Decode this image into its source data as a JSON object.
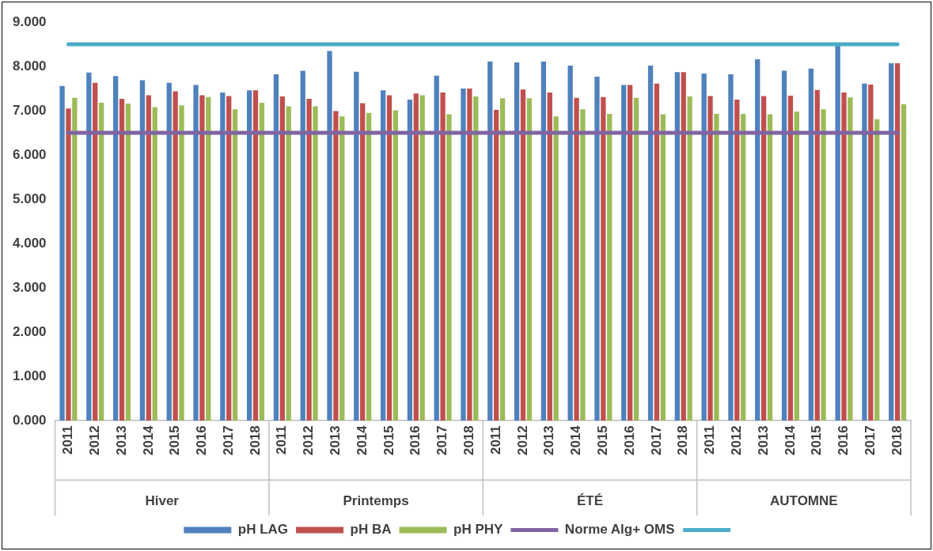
{
  "chart_data": {
    "type": "bar",
    "categories": [
      "2011",
      "2012",
      "2013",
      "2014",
      "2015",
      "2016",
      "2017",
      "2018",
      "2011",
      "2012",
      "2013",
      "2014",
      "2015",
      "2016",
      "2017",
      "2018",
      "2011",
      "2012",
      "2013",
      "2014",
      "2015",
      "2016",
      "2017",
      "2018",
      "2011",
      "2012",
      "2013",
      "2014",
      "2015",
      "2016",
      "2017",
      "2018"
    ],
    "annotations": [
      "Hiver",
      "Printemps",
      "ÉTÉ",
      "AUTOMNE"
    ],
    "series": [
      {
        "name": "pH LAG",
        "color": "#4f81bd",
        "values": [
          7.56,
          7.86,
          7.78,
          7.69,
          7.63,
          7.58,
          7.41,
          7.46,
          7.82,
          7.9,
          8.35,
          7.88,
          7.46,
          7.25,
          7.79,
          7.5,
          8.11,
          8.09,
          8.11,
          8.02,
          7.77,
          7.58,
          8.02,
          7.87,
          7.84,
          7.82,
          8.16,
          7.9,
          7.95,
          8.47,
          7.61,
          8.07
        ]
      },
      {
        "name": "pH BA",
        "color": "#c0504d",
        "values": [
          7.05,
          7.63,
          7.27,
          7.35,
          7.44,
          7.35,
          7.33,
          7.46,
          7.32,
          7.27,
          6.99,
          7.17,
          7.35,
          7.39,
          7.41,
          7.5,
          7.02,
          7.48,
          7.41,
          7.29,
          7.31,
          7.58,
          7.61,
          7.87,
          7.33,
          7.25,
          7.33,
          7.34,
          7.47,
          7.41,
          7.59,
          8.07
        ]
      },
      {
        "name": "pH PHY",
        "color": "#9bbb59",
        "values": [
          7.29,
          7.18,
          7.16,
          7.08,
          7.12,
          7.31,
          7.03,
          7.18,
          7.1,
          7.1,
          6.87,
          6.95,
          7.01,
          7.35,
          6.92,
          7.32,
          7.28,
          7.28,
          6.87,
          7.03,
          6.93,
          7.29,
          6.92,
          7.32,
          6.93,
          6.93,
          6.92,
          6.98,
          7.03,
          7.3,
          6.81,
          7.15
        ]
      },
      {
        "name": "Norme Alg+ OMS",
        "type": "line",
        "color": "#8064a2",
        "values": [
          6.5,
          6.5,
          6.5,
          6.5,
          6.5,
          6.5,
          6.5,
          6.5,
          6.5,
          6.5,
          6.5,
          6.5,
          6.5,
          6.5,
          6.5,
          6.5,
          6.5,
          6.5,
          6.5,
          6.5,
          6.5,
          6.5,
          6.5,
          6.5,
          6.5,
          6.5,
          6.5,
          6.5,
          6.5,
          6.5,
          6.5,
          6.5
        ]
      },
      {
        "type": "line",
        "color": "#4bacc6",
        "values": [
          8.5,
          8.5,
          8.5,
          8.5,
          8.5,
          8.5,
          8.5,
          8.5,
          8.5,
          8.5,
          8.5,
          8.5,
          8.5,
          8.5,
          8.5,
          8.5,
          8.5,
          8.5,
          8.5,
          8.5,
          8.5,
          8.5,
          8.5,
          8.5,
          8.5,
          8.5,
          8.5,
          8.5,
          8.5,
          8.5,
          8.5,
          8.5
        ]
      }
    ],
    "ylim": [
      0,
      9
    ],
    "yticks": [
      {
        "value": 0,
        "label": "0.000"
      },
      {
        "value": 1,
        "label": "1.000"
      },
      {
        "value": 2,
        "label": "2.000"
      },
      {
        "value": 3,
        "label": "3.000"
      },
      {
        "value": 4,
        "label": "4.000"
      },
      {
        "value": 5,
        "label": "5.000"
      },
      {
        "value": 6,
        "label": "6.000"
      },
      {
        "value": 7,
        "label": "7.000"
      },
      {
        "value": 8,
        "label": "8.000"
      },
      {
        "value": 9,
        "label": "9.000"
      }
    ],
    "grid": false,
    "legend": "bottom",
    "marker": "none",
    "line_style": "solid"
  }
}
